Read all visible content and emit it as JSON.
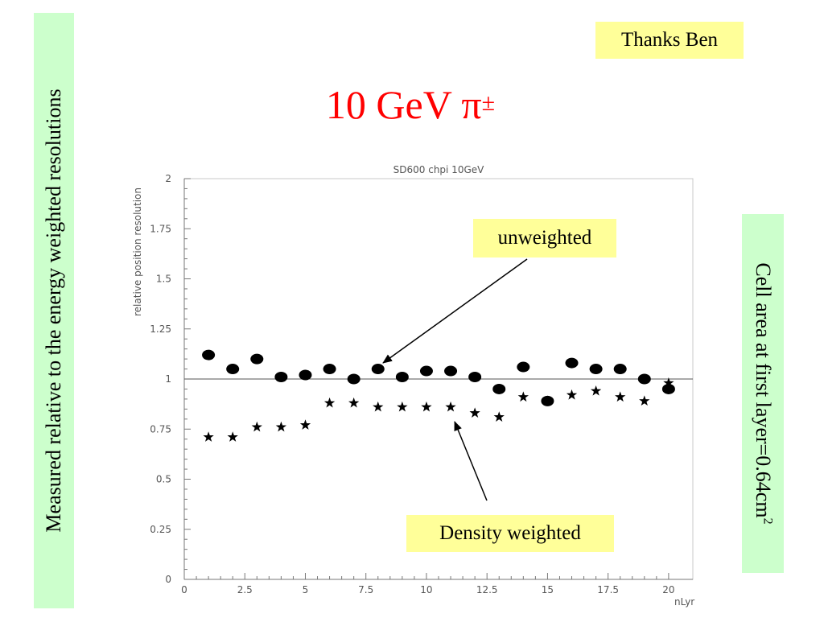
{
  "thanks_note": "Thanks Ben",
  "slide_title": {
    "main": "10 GeV π",
    "superscript": "±"
  },
  "left_note": "Measured relative to the energy weighted resolutions",
  "right_note": {
    "main": "Cell area at first layer=0.64cm",
    "superscript": "2"
  },
  "annotations": {
    "unweighted": "unweighted",
    "density": "Density weighted"
  },
  "colors": {
    "title": "#ff0000",
    "highlight_yellow": "#ffff99",
    "highlight_green": "#ccffcc"
  },
  "chart_data": {
    "type": "scatter",
    "title": "SD600 chpi 10GeV",
    "xlabel": "nLyr",
    "ylabel": "relative position resolution",
    "xlim": [
      0,
      21
    ],
    "ylim": [
      0,
      2
    ],
    "x_ticks": [
      0,
      2.5,
      5,
      7.5,
      10,
      12.5,
      15,
      17.5,
      20
    ],
    "x_tick_labels": [
      "0",
      "2.5",
      "5",
      "7.5",
      "10",
      "12.5",
      "15",
      "17.5",
      "20"
    ],
    "y_ticks": [
      0,
      0.25,
      0.5,
      0.75,
      1,
      1.25,
      1.5,
      1.75,
      2
    ],
    "y_tick_labels": [
      "0",
      "0.25",
      "0.5",
      "0.75",
      "1",
      "1.25",
      "1.5",
      "1.75",
      "2"
    ],
    "reference_line_y": 1,
    "grid": false,
    "series": [
      {
        "name": "unweighted",
        "marker": "circle",
        "x": [
          1,
          2,
          3,
          4,
          5,
          6,
          7,
          8,
          9,
          10,
          11,
          12,
          13,
          14,
          15,
          16,
          17,
          18,
          19,
          20
        ],
        "y": [
          1.12,
          1.05,
          1.1,
          1.01,
          1.02,
          1.05,
          1.0,
          1.05,
          1.01,
          1.04,
          1.04,
          1.01,
          0.95,
          1.06,
          0.89,
          1.08,
          1.05,
          1.05,
          1.0,
          0.95
        ]
      },
      {
        "name": "Density weighted",
        "marker": "star",
        "x": [
          1,
          2,
          3,
          4,
          5,
          6,
          7,
          8,
          9,
          10,
          11,
          12,
          13,
          14,
          15,
          16,
          17,
          18,
          19,
          20
        ],
        "y": [
          0.71,
          0.71,
          0.76,
          0.76,
          0.77,
          0.88,
          0.88,
          0.86,
          0.86,
          0.86,
          0.86,
          0.83,
          0.81,
          0.91,
          0.89,
          0.92,
          0.94,
          0.91,
          0.89,
          0.98
        ]
      }
    ]
  }
}
